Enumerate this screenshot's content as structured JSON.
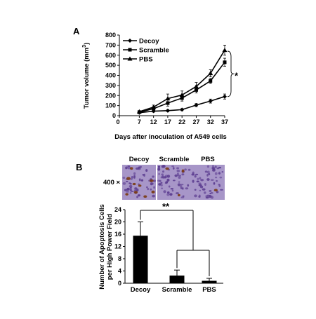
{
  "panel_a_label": "A",
  "panel_b_label": "B",
  "magnification_label": "400 ×",
  "image_labels": [
    "Decoy",
    "Scramble",
    "PBS"
  ],
  "colors": {
    "stain_bg": "#a796c8",
    "nuclei": "#5b3c8f",
    "apoptotic": "#7a3a10"
  },
  "chart_data": [
    {
      "type": "line",
      "x": [
        7,
        12,
        17,
        22,
        27,
        32,
        37
      ],
      "xlabel": "Days after inoculation of A549 cells",
      "ylabel": "Tumor volume (mm",
      "ylabel_sup": "3",
      "ylabel_close": ")",
      "xticks": [
        0,
        7,
        12,
        17,
        22,
        27,
        32,
        37
      ],
      "xlim": [
        0,
        37
      ],
      "ylim": [
        0,
        800
      ],
      "yticks": [
        0,
        100,
        200,
        300,
        400,
        500,
        600,
        700,
        800
      ],
      "legend_position": "top-left",
      "series": [
        {
          "name": "Decoy",
          "marker": "diamond",
          "values": [
            30,
            45,
            50,
            60,
            105,
            145,
            190
          ],
          "errors": [
            10,
            10,
            10,
            10,
            15,
            20,
            25
          ]
        },
        {
          "name": "Scramble",
          "marker": "square",
          "values": [
            35,
            70,
            125,
            175,
            255,
            345,
            530
          ],
          "errors": [
            10,
            15,
            30,
            30,
            30,
            25,
            40
          ]
        },
        {
          "name": "PBS",
          "marker": "triangle",
          "values": [
            40,
            85,
            170,
            205,
            290,
            420,
            650
          ],
          "errors": [
            10,
            20,
            45,
            40,
            40,
            35,
            50
          ]
        }
      ],
      "significance": "*"
    },
    {
      "type": "bar",
      "categories": [
        "Decoy",
        "Scramble",
        "PBS"
      ],
      "values": [
        15.5,
        2.5,
        0.8
      ],
      "errors": [
        4.5,
        1.8,
        0.8
      ],
      "ylabel_line1": "Number of Apoptosis Cells",
      "ylabel_line2": "per High Power Field",
      "ylim": [
        0,
        24
      ],
      "yticks": [
        0,
        4,
        8,
        12,
        16,
        20,
        24
      ],
      "significance": "**"
    }
  ]
}
